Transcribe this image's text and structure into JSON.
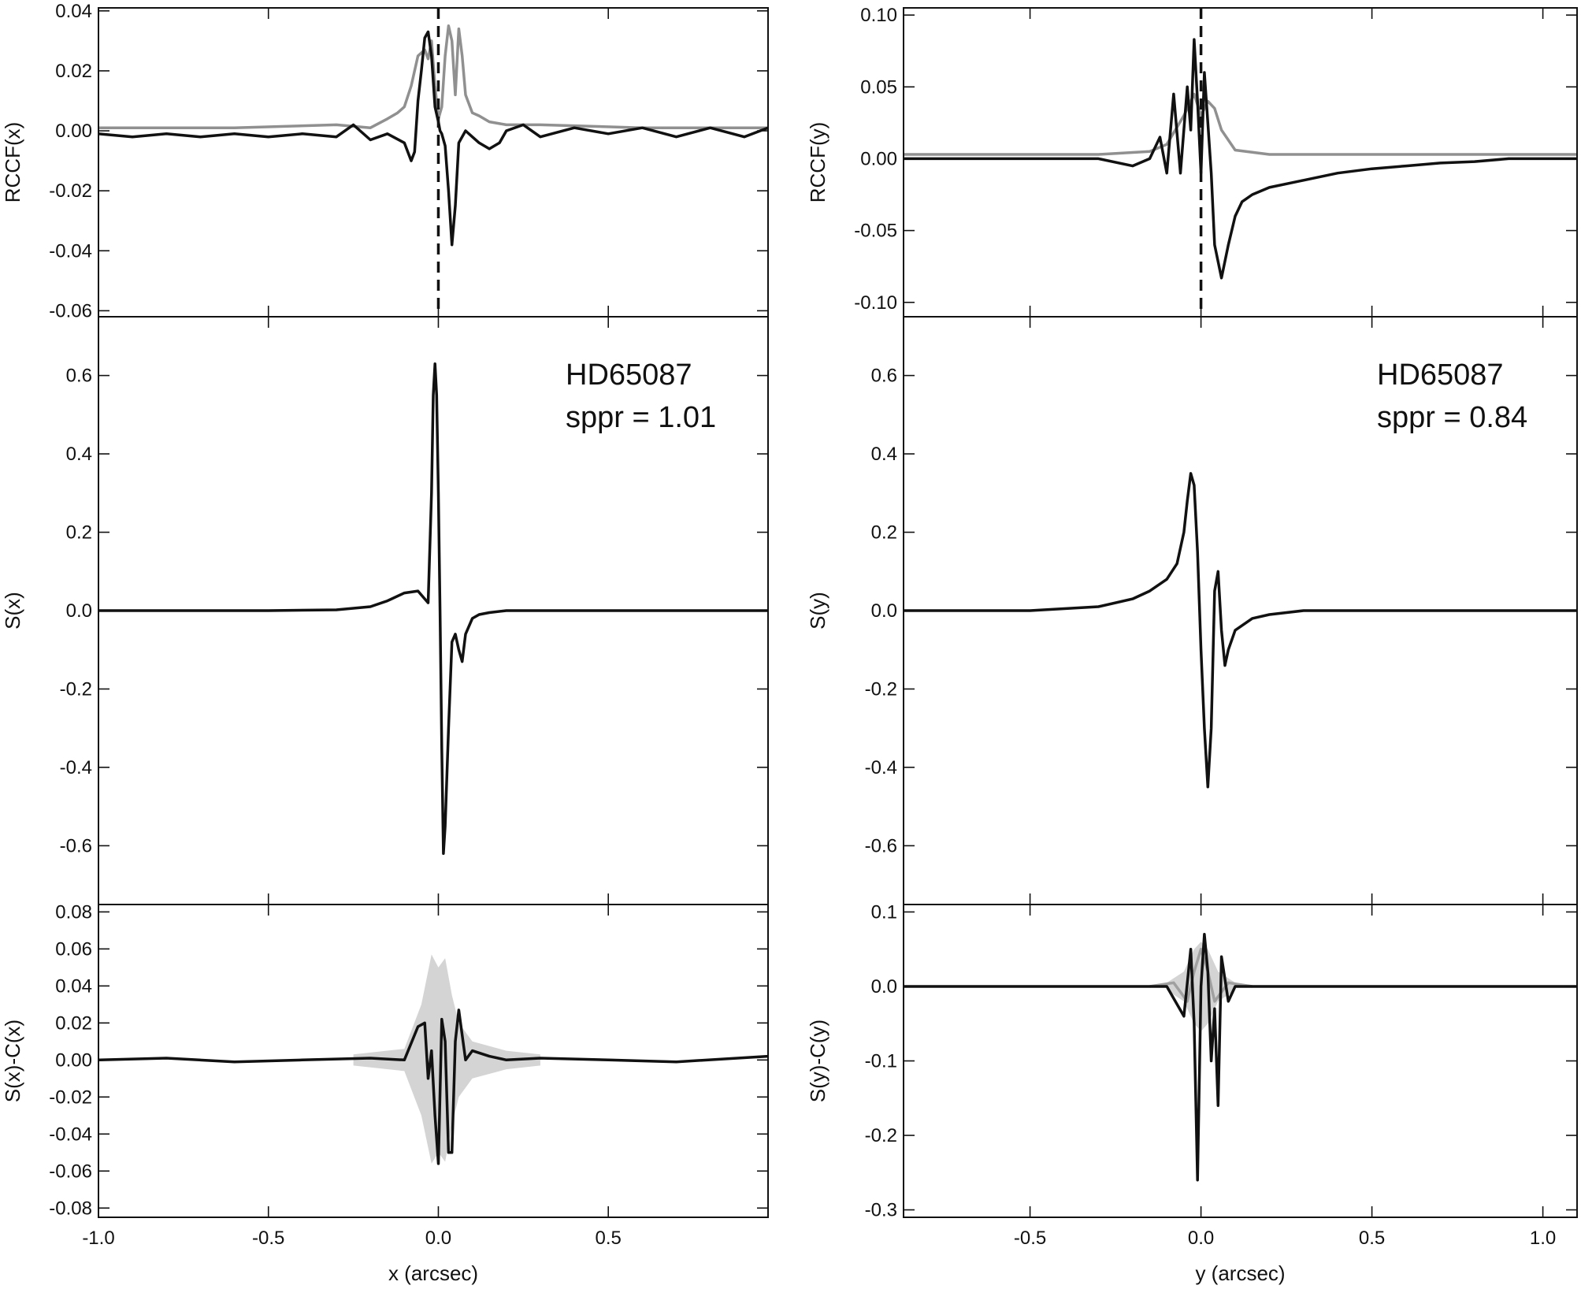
{
  "chart_data": [
    {
      "type": "line",
      "panel": "left-top",
      "ylabel": "RCCF(x)",
      "xlim": [
        -1.0,
        0.97
      ],
      "ylim": [
        -0.062,
        0.041
      ],
      "yticks": [
        0.04,
        0.02,
        0.0,
        -0.02,
        -0.04,
        -0.06
      ],
      "ytick_labels": [
        "0.04",
        "0.02",
        "0.00",
        "-0.02",
        "-0.04",
        "-0.06"
      ],
      "vline_x": 0.0,
      "series": [
        {
          "color": "#111111",
          "x": [
            -1.0,
            -0.9,
            -0.8,
            -0.7,
            -0.6,
            -0.5,
            -0.4,
            -0.3,
            -0.25,
            -0.2,
            -0.15,
            -0.1,
            -0.08,
            -0.07,
            -0.06,
            -0.05,
            -0.04,
            -0.03,
            -0.02,
            -0.01,
            0.0,
            0.005,
            0.01,
            0.02,
            0.03,
            0.04,
            0.05,
            0.06,
            0.08,
            0.1,
            0.12,
            0.15,
            0.18,
            0.2,
            0.25,
            0.3,
            0.4,
            0.5,
            0.6,
            0.7,
            0.8,
            0.9,
            0.97
          ],
          "values": [
            -0.001,
            -0.002,
            -0.001,
            -0.002,
            -0.001,
            -0.002,
            -0.001,
            -0.002,
            0.002,
            -0.003,
            -0.001,
            -0.004,
            -0.01,
            -0.007,
            0.01,
            0.02,
            0.031,
            0.033,
            0.025,
            0.008,
            0.003,
            0.0,
            -0.001,
            -0.005,
            -0.02,
            -0.038,
            -0.025,
            -0.004,
            0.0,
            -0.002,
            -0.004,
            -0.006,
            -0.004,
            0.0,
            0.002,
            -0.002,
            0.001,
            -0.001,
            0.001,
            -0.002,
            0.001,
            -0.002,
            0.001
          ]
        },
        {
          "color": "#909090",
          "x": [
            -1.0,
            -0.6,
            -0.3,
            -0.2,
            -0.15,
            -0.12,
            -0.1,
            -0.08,
            -0.06,
            -0.04,
            -0.03,
            -0.02,
            -0.01,
            0.0,
            0.01,
            0.02,
            0.03,
            0.04,
            0.05,
            0.06,
            0.07,
            0.08,
            0.1,
            0.12,
            0.15,
            0.2,
            0.3,
            0.6,
            0.97
          ],
          "values": [
            0.001,
            0.001,
            0.002,
            0.001,
            0.004,
            0.006,
            0.008,
            0.015,
            0.025,
            0.027,
            0.024,
            0.03,
            0.015,
            0.004,
            0.008,
            0.025,
            0.035,
            0.03,
            0.012,
            0.034,
            0.025,
            0.012,
            0.006,
            0.005,
            0.003,
            0.002,
            0.002,
            0.001,
            0.001
          ]
        }
      ]
    },
    {
      "type": "line",
      "panel": "left-middle",
      "ylabel": "S(x)",
      "xlim": [
        -1.0,
        0.97
      ],
      "ylim": [
        -0.75,
        0.75
      ],
      "yticks": [
        0.6,
        0.4,
        0.2,
        0.0,
        -0.2,
        -0.4,
        -0.6
      ],
      "ytick_labels": [
        "0.6",
        "0.4",
        "0.2",
        "0.0",
        "-0.2",
        "-0.4",
        "-0.6"
      ],
      "annotation": [
        "HD65087",
        "sppr = 1.01"
      ],
      "series": [
        {
          "color": "#111111",
          "x": [
            -1.0,
            -0.5,
            -0.3,
            -0.2,
            -0.15,
            -0.1,
            -0.06,
            -0.04,
            -0.03,
            -0.02,
            -0.015,
            -0.01,
            -0.005,
            0.0,
            0.005,
            0.01,
            0.015,
            0.02,
            0.03,
            0.04,
            0.05,
            0.06,
            0.07,
            0.08,
            0.1,
            0.12,
            0.15,
            0.2,
            0.3,
            0.5,
            0.97
          ],
          "values": [
            0.0,
            0.0,
            0.002,
            0.01,
            0.025,
            0.045,
            0.05,
            0.03,
            0.02,
            0.3,
            0.55,
            0.63,
            0.55,
            0.3,
            0.0,
            -0.35,
            -0.62,
            -0.55,
            -0.3,
            -0.08,
            -0.06,
            -0.1,
            -0.13,
            -0.06,
            -0.02,
            -0.01,
            -0.005,
            0.0,
            0.0,
            0.0,
            0.0
          ]
        }
      ]
    },
    {
      "type": "line",
      "panel": "left-bottom",
      "ylabel": "S(x)-C(x)",
      "xlabel": "x (arcsec)",
      "xlim": [
        -1.0,
        0.97
      ],
      "ylim": [
        -0.085,
        0.084
      ],
      "xticks": [
        -1.0,
        -0.5,
        0.0,
        0.5
      ],
      "xtick_labels": [
        "-1.0",
        "-0.5",
        "0.0",
        "0.5"
      ],
      "yticks": [
        0.08,
        0.06,
        0.04,
        0.02,
        0.0,
        -0.02,
        -0.04,
        -0.06,
        -0.08
      ],
      "ytick_labels": [
        "0.08",
        "0.06",
        "0.04",
        "0.02",
        "0.00",
        "-0.02",
        "-0.04",
        "-0.06",
        "-0.08"
      ],
      "band": {
        "color": "#d4d4d4",
        "x": [
          -0.25,
          -0.1,
          -0.05,
          -0.02,
          0.0,
          0.02,
          0.04,
          0.06,
          0.1,
          0.2,
          0.3
        ],
        "upper": [
          0.003,
          0.006,
          0.03,
          0.057,
          0.05,
          0.055,
          0.035,
          0.02,
          0.01,
          0.005,
          0.003
        ],
        "lower": [
          -0.003,
          -0.006,
          -0.03,
          -0.056,
          -0.05,
          -0.055,
          -0.035,
          -0.02,
          -0.01,
          -0.005,
          -0.003
        ]
      },
      "series": [
        {
          "color": "#111111",
          "x": [
            -1.0,
            -0.8,
            -0.6,
            -0.4,
            -0.2,
            -0.1,
            -0.06,
            -0.04,
            -0.03,
            -0.02,
            -0.01,
            0.0,
            0.01,
            0.02,
            0.03,
            0.04,
            0.05,
            0.06,
            0.08,
            0.1,
            0.15,
            0.2,
            0.3,
            0.5,
            0.7,
            0.97
          ],
          "values": [
            0.0,
            0.001,
            -0.001,
            0.0,
            0.001,
            0.0,
            0.018,
            0.02,
            -0.01,
            0.005,
            -0.03,
            -0.056,
            0.022,
            0.01,
            -0.05,
            -0.05,
            0.01,
            0.027,
            0.0,
            0.005,
            0.002,
            0.0,
            0.001,
            0.0,
            -0.001,
            0.002
          ]
        }
      ]
    },
    {
      "type": "line",
      "panel": "right-top",
      "ylabel": "RCCF(y)",
      "xlim": [
        -0.87,
        1.1
      ],
      "ylim": [
        -0.11,
        0.105
      ],
      "yticks": [
        0.1,
        0.05,
        0.0,
        -0.05,
        -0.1
      ],
      "ytick_labels": [
        "0.10",
        "0.05",
        "0.00",
        "-0.05",
        "-0.10"
      ],
      "vline_x": 0.0,
      "series": [
        {
          "color": "#111111",
          "x": [
            -0.87,
            -0.6,
            -0.3,
            -0.2,
            -0.15,
            -0.12,
            -0.1,
            -0.08,
            -0.06,
            -0.04,
            -0.03,
            -0.02,
            -0.01,
            0.0,
            0.01,
            0.02,
            0.03,
            0.04,
            0.06,
            0.08,
            0.1,
            0.12,
            0.15,
            0.2,
            0.3,
            0.4,
            0.5,
            0.6,
            0.7,
            0.8,
            0.9,
            1.0,
            1.1
          ],
          "values": [
            0.0,
            0.0,
            0.0,
            -0.005,
            0.0,
            0.015,
            -0.01,
            0.045,
            -0.01,
            0.05,
            0.02,
            0.083,
            0.04,
            -0.01,
            0.06,
            0.025,
            -0.01,
            -0.06,
            -0.083,
            -0.06,
            -0.04,
            -0.03,
            -0.025,
            -0.02,
            -0.015,
            -0.01,
            -0.007,
            -0.005,
            -0.003,
            -0.002,
            0.0,
            0.0,
            0.0
          ]
        },
        {
          "color": "#909090",
          "x": [
            -0.87,
            -0.3,
            -0.15,
            -0.1,
            -0.05,
            -0.02,
            0.0,
            0.02,
            0.04,
            0.06,
            0.1,
            0.2,
            0.5,
            1.1
          ],
          "values": [
            0.003,
            0.003,
            0.005,
            0.01,
            0.03,
            0.045,
            0.03,
            0.04,
            0.035,
            0.02,
            0.006,
            0.003,
            0.003,
            0.003
          ]
        }
      ]
    },
    {
      "type": "line",
      "panel": "right-middle",
      "ylabel": "S(y)",
      "xlim": [
        -0.87,
        1.1
      ],
      "ylim": [
        -0.75,
        0.75
      ],
      "yticks": [
        0.6,
        0.4,
        0.2,
        0.0,
        -0.2,
        -0.4,
        -0.6
      ],
      "ytick_labels": [
        "0.6",
        "0.4",
        "0.2",
        "0.0",
        "-0.2",
        "-0.4",
        "-0.6"
      ],
      "annotation": [
        "HD65087",
        "sppr = 0.84"
      ],
      "series": [
        {
          "color": "#111111",
          "x": [
            -0.87,
            -0.5,
            -0.3,
            -0.2,
            -0.15,
            -0.1,
            -0.07,
            -0.05,
            -0.04,
            -0.03,
            -0.02,
            -0.01,
            0.0,
            0.01,
            0.02,
            0.03,
            0.04,
            0.05,
            0.06,
            0.07,
            0.08,
            0.1,
            0.15,
            0.2,
            0.3,
            0.5,
            1.1
          ],
          "values": [
            0.0,
            0.0,
            0.01,
            0.03,
            0.05,
            0.08,
            0.12,
            0.2,
            0.28,
            0.35,
            0.32,
            0.15,
            -0.1,
            -0.3,
            -0.45,
            -0.3,
            0.05,
            0.1,
            -0.05,
            -0.14,
            -0.1,
            -0.05,
            -0.02,
            -0.01,
            0.0,
            0.0,
            0.0
          ]
        }
      ]
    },
    {
      "type": "line",
      "panel": "right-bottom",
      "ylabel": "S(y)-C(y)",
      "xlabel": "y (arcsec)",
      "xlim": [
        -0.87,
        1.1
      ],
      "ylim": [
        -0.31,
        0.11
      ],
      "xticks": [
        -0.5,
        0.0,
        0.5,
        1.0
      ],
      "xtick_labels": [
        "-0.5",
        "0.0",
        "0.5",
        "1.0"
      ],
      "yticks": [
        0.1,
        0.0,
        -0.1,
        -0.2,
        -0.3
      ],
      "ytick_labels": [
        "0.1",
        "0.0",
        "-0.1",
        "-0.2",
        "-0.3"
      ],
      "band": {
        "color": "#d4d4d4",
        "x": [
          -0.1,
          -0.05,
          -0.02,
          0.0,
          0.02,
          0.05,
          0.1
        ],
        "upper": [
          0.005,
          0.02,
          0.05,
          0.06,
          0.05,
          0.02,
          0.005
        ],
        "lower": [
          -0.005,
          -0.02,
          -0.05,
          -0.06,
          -0.05,
          -0.02,
          -0.005
        ]
      },
      "series": [
        {
          "color": "#111111",
          "x": [
            -0.87,
            -0.5,
            -0.2,
            -0.1,
            -0.05,
            -0.03,
            -0.02,
            -0.01,
            0.0,
            0.01,
            0.02,
            0.03,
            0.04,
            0.05,
            0.06,
            0.08,
            0.1,
            0.2,
            0.5,
            1.1
          ],
          "values": [
            0.0,
            0.0,
            0.0,
            0.0,
            -0.04,
            0.05,
            -0.05,
            -0.26,
            0.0,
            0.07,
            0.02,
            -0.1,
            -0.03,
            -0.16,
            0.04,
            -0.02,
            0.0,
            0.0,
            0.0,
            0.0
          ]
        },
        {
          "color": "#a0a0a0",
          "x": [
            -0.15,
            -0.08,
            -0.04,
            -0.02,
            0.0,
            0.02,
            0.04,
            0.08,
            0.15
          ],
          "values": [
            0.0,
            0.005,
            -0.02,
            0.02,
            0.05,
            0.02,
            -0.02,
            0.005,
            0.0
          ]
        }
      ]
    }
  ]
}
